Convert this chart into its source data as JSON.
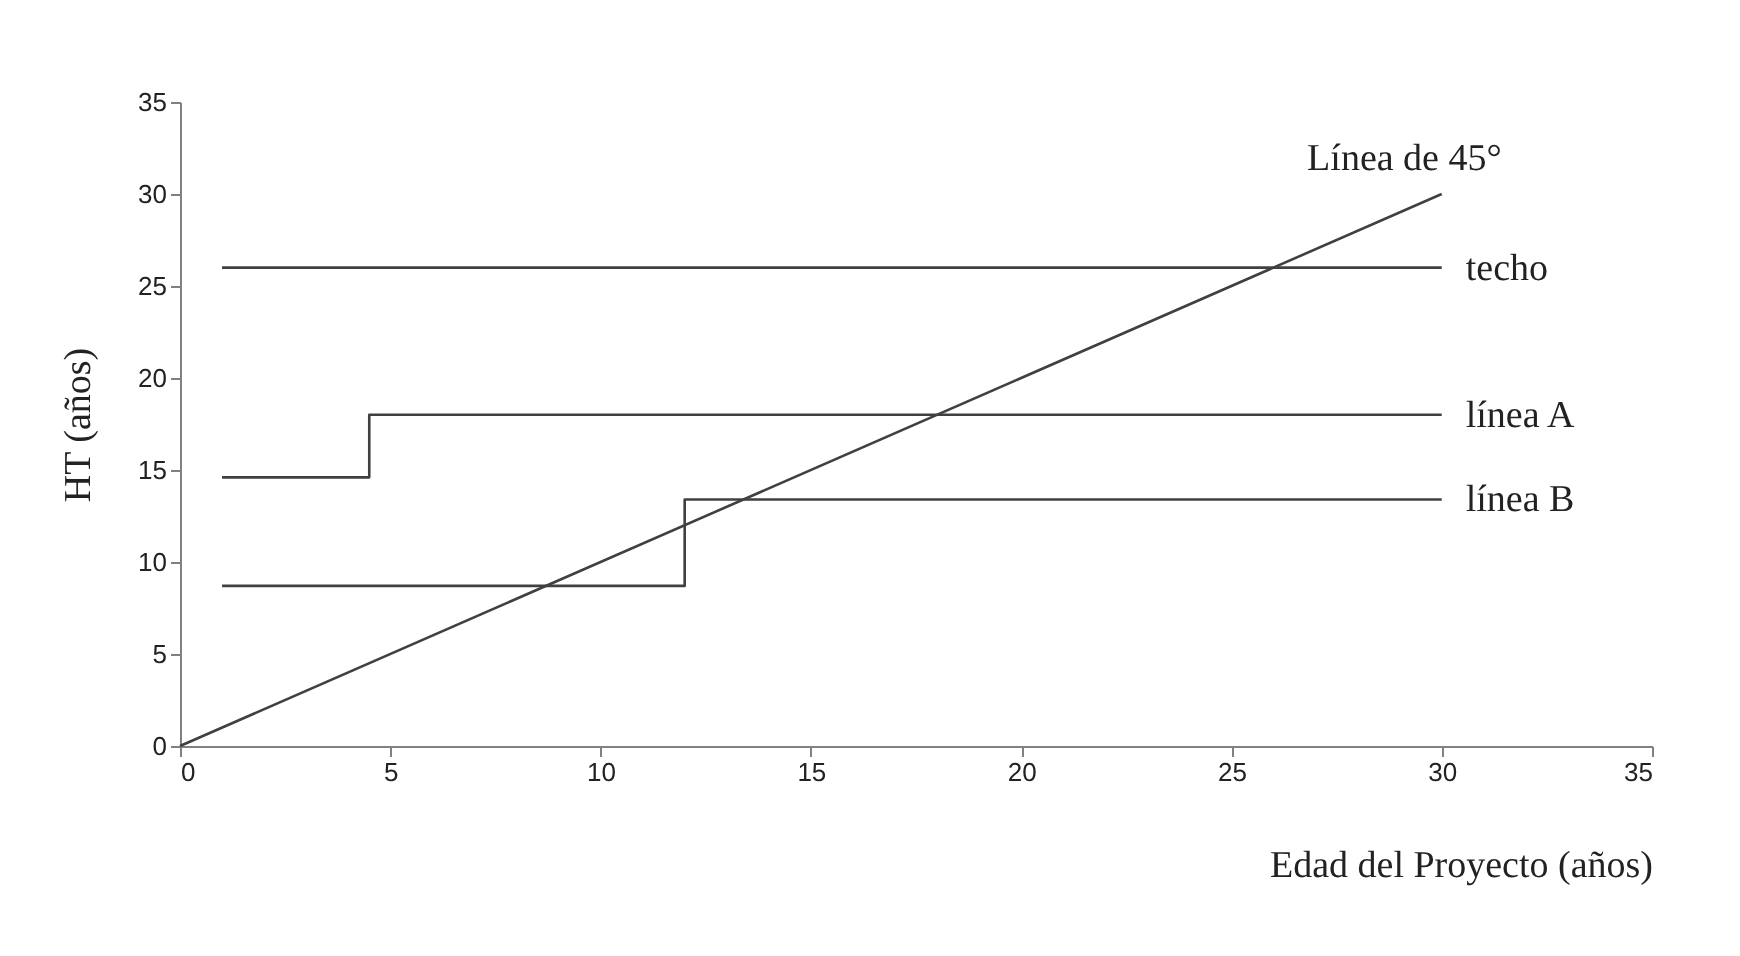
{
  "chart_data": {
    "type": "step",
    "xlabel": "Edad del Proyecto (años)",
    "ylabel": "HT (años)",
    "xlim": [
      0,
      35
    ],
    "ylim": [
      0,
      35
    ],
    "xticks": [
      0,
      5,
      10,
      15,
      20,
      25,
      30,
      35
    ],
    "yticks": [
      0,
      5,
      10,
      15,
      20,
      25,
      30,
      35
    ],
    "grid": false,
    "marker": "none",
    "line_style": "solid",
    "series": [
      {
        "name": "techo",
        "color": "#404040",
        "x": [
          1,
          30
        ],
        "values": [
          26,
          26
        ]
      },
      {
        "name": "línea A",
        "color": "#404040",
        "x": [
          1,
          4.5,
          30
        ],
        "values": [
          14.6,
          18,
          18
        ]
      },
      {
        "name": "línea B",
        "color": "#404040",
        "x": [
          1,
          12,
          30
        ],
        "values": [
          8.7,
          13.4,
          13.4
        ]
      },
      {
        "name": "Línea de 45°",
        "type": "line",
        "color": "#404040",
        "x": [
          0,
          30
        ],
        "values": [
          0,
          30
        ]
      }
    ]
  }
}
